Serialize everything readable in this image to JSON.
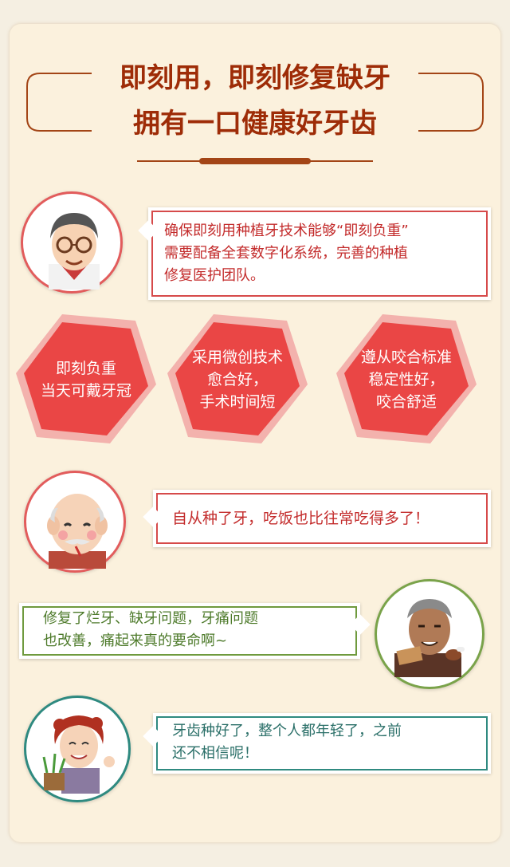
{
  "title": {
    "line1": "即刻用，即刻修复缺牙",
    "line2": "拥有一口健康好牙齿"
  },
  "bubbles": [
    {
      "line1": "确保即刻用种植牙技术能够“即刻负重”",
      "line2": "需要配备全套数字化系统，完善的种植",
      "line3": "修复医护团队。"
    },
    {
      "line1": "自从种了牙，吃饭也比往常吃得多了！"
    },
    {
      "line1": "修复了烂牙、缺牙问题，牙痛问题",
      "line2": "也改善，痛起来真的要命啊~"
    },
    {
      "line1": "牙齿种好了，整个人都年轻了，之前",
      "line2": "还不相信呢！"
    }
  ],
  "features": [
    {
      "line1": "即刻负重",
      "line2": "当天可戴牙冠"
    },
    {
      "line1": "采用微创技术",
      "line2": "愈合好，",
      "line3": "手术时间短"
    },
    {
      "line1": "遵从咬合标准",
      "line2": "稳定性好，",
      "line3": "咬合舒适"
    }
  ],
  "colors": {
    "title": "#9e2c07",
    "hexagon": "#ea4645",
    "bubble_red": "#c32b2b",
    "bubble_green": "#5d8a35",
    "bubble_teal": "#2c7a72"
  }
}
